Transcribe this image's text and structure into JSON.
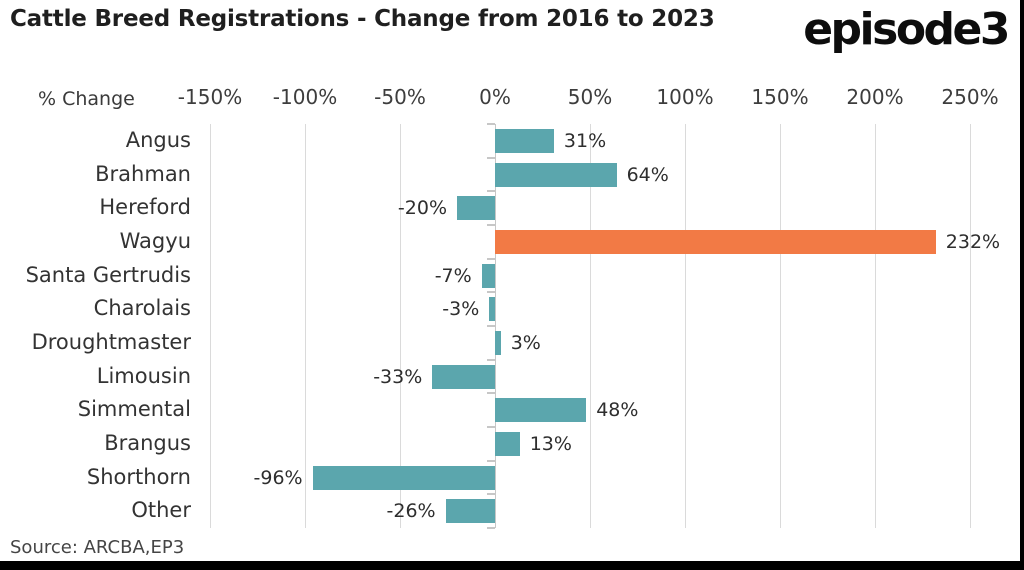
{
  "header": {
    "title": "Cattle Breed Registrations - Change from 2016 to 2023",
    "logo": "episode3"
  },
  "axis": {
    "label": "% Change"
  },
  "footer": {
    "source": "Source: ARCBA,EP3"
  },
  "colors": {
    "bar_teal": "#5BA6AD",
    "bar_highlight_orange": "#F27A45",
    "gridline": "#DADADA",
    "axis_line": "#C7C7C7",
    "title_text": "#1F1F1F",
    "label_text": "#333333",
    "edge_black": "#000000"
  },
  "chart_data": {
    "type": "bar",
    "orientation": "horizontal",
    "title": "Cattle Breed Registrations - Change from 2016 to 2023",
    "xlabel": "% Change",
    "xlim": [
      -150,
      250
    ],
    "xticks": [
      -150,
      -100,
      -50,
      0,
      50,
      100,
      150,
      200,
      250
    ],
    "xtick_labels": [
      "-150%",
      "-100%",
      "-50%",
      "0%",
      "50%",
      "100%",
      "150%",
      "200%",
      "250%"
    ],
    "grid": true,
    "legend": false,
    "categories": [
      "Angus",
      "Brahman",
      "Hereford",
      "Wagyu",
      "Santa Gertrudis",
      "Charolais",
      "Droughtmaster",
      "Limousin",
      "Simmental",
      "Brangus",
      "Shorthorn",
      "Other"
    ],
    "values": [
      31,
      64,
      -20,
      232,
      -7,
      -3,
      3,
      -33,
      48,
      13,
      -96,
      -26
    ],
    "data_labels": [
      "31%",
      "64%",
      "-20%",
      "232%",
      "-7%",
      "-3%",
      "3%",
      "-33%",
      "48%",
      "13%",
      "-96%",
      "-26%"
    ],
    "highlight_index": 3,
    "highlight_category": "Wagyu",
    "source": "Source: ARCBA,EP3"
  }
}
